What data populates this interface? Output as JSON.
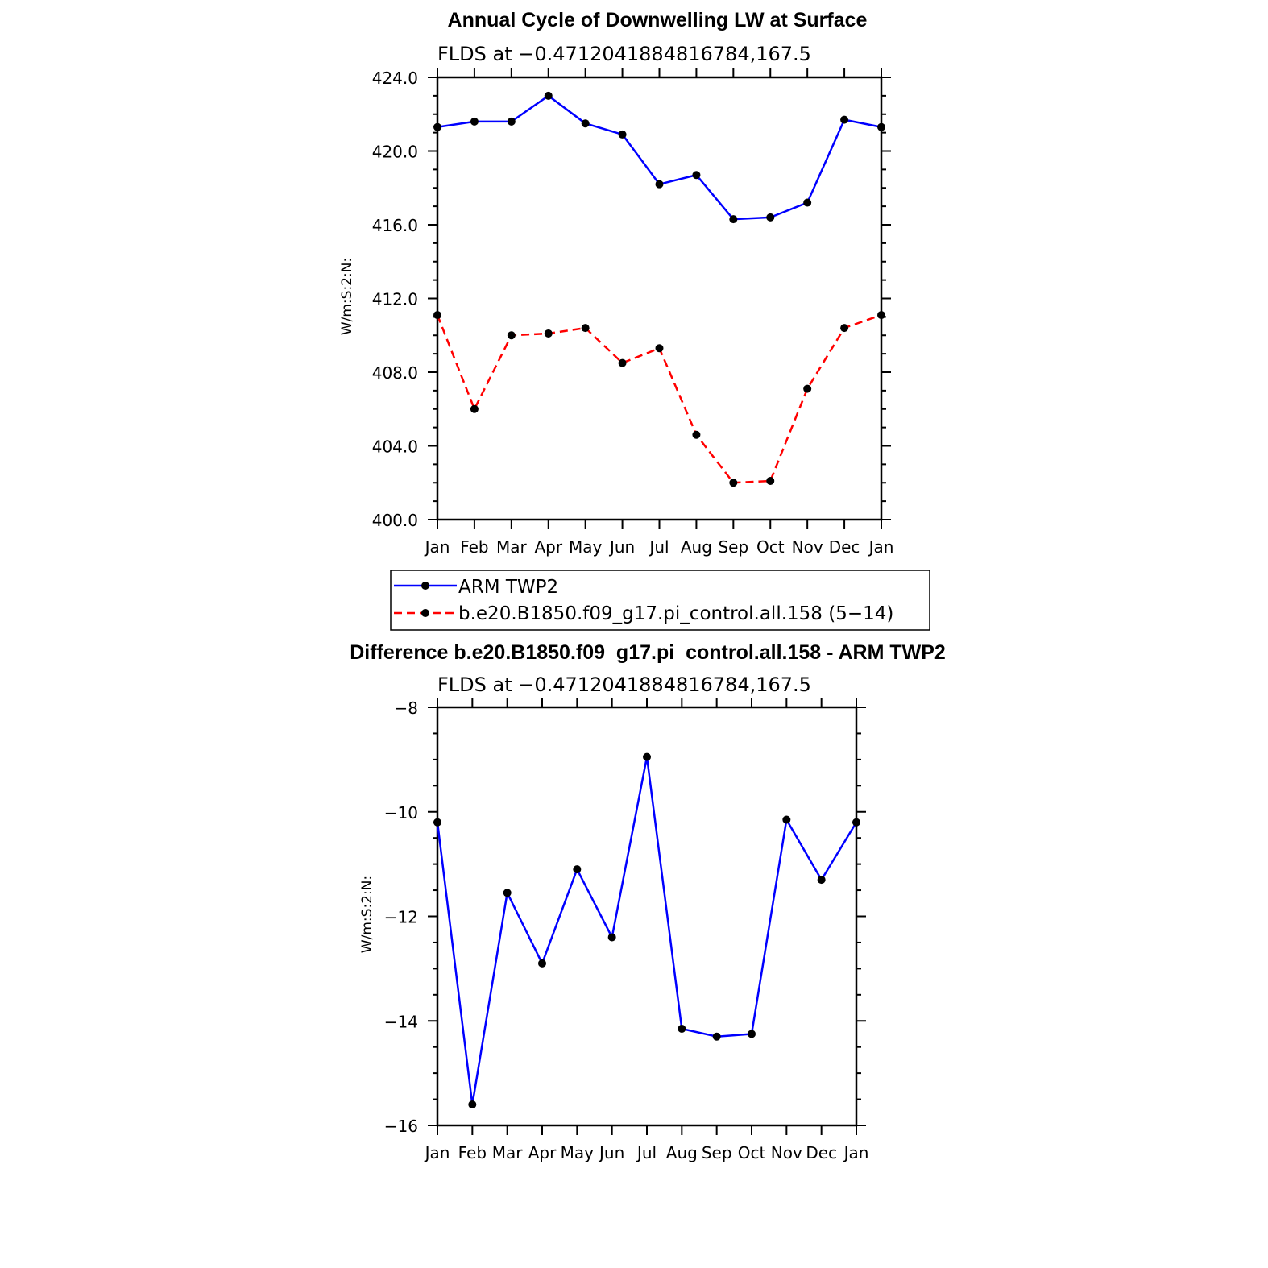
{
  "chart_data": [
    {
      "type": "line",
      "title": "Annual Cycle of Downwelling LW at Surface",
      "subtitle": "FLDS at −0.4712041884816784,167.5",
      "xlabel": "",
      "ylabel": "W/m:S:2:N:",
      "categories": [
        "Jan",
        "Feb",
        "Mar",
        "Apr",
        "May",
        "Jun",
        "Jul",
        "Aug",
        "Sep",
        "Oct",
        "Nov",
        "Dec",
        "Jan"
      ],
      "ylim": [
        400.0,
        424.0
      ],
      "yticks": [
        "400.0",
        "404.0",
        "408.0",
        "412.0",
        "416.0",
        "420.0",
        "424.0"
      ],
      "ytick_values": [
        400,
        404,
        408,
        412,
        416,
        420,
        424
      ],
      "series": [
        {
          "name": "ARM TWP2",
          "color": "#0000ff",
          "style": "solid",
          "values": [
            421.3,
            421.6,
            421.6,
            423.0,
            421.5,
            420.9,
            418.2,
            418.7,
            416.3,
            416.4,
            417.2,
            421.7,
            421.3
          ]
        },
        {
          "name": "b.e20.B1850.f09_g17.pi_control.all.158 (5−14)",
          "color": "#ff0000",
          "style": "dashed",
          "values": [
            411.1,
            406.0,
            410.0,
            410.1,
            410.4,
            408.5,
            409.3,
            404.6,
            402.0,
            402.1,
            407.1,
            410.4,
            411.1
          ]
        }
      ],
      "grid": false,
      "legend": "below plot"
    },
    {
      "type": "line",
      "title": "Difference b.e20.B1850.f09_g17.pi_control.all.158 - ARM TWP2",
      "subtitle": "FLDS at −0.4712041884816784,167.5",
      "xlabel": "",
      "ylabel": "W/m:S:2:N:",
      "categories": [
        "Jan",
        "Feb",
        "Mar",
        "Apr",
        "May",
        "Jun",
        "Jul",
        "Aug",
        "Sep",
        "Oct",
        "Nov",
        "Dec",
        "Jan"
      ],
      "ylim": [
        -16,
        -8
      ],
      "yticks": [
        "−16",
        "−14",
        "−12",
        "−10",
        "−8"
      ],
      "ytick_values": [
        -16,
        -14,
        -12,
        -10,
        -8
      ],
      "series": [
        {
          "color": "#0000ff",
          "style": "solid",
          "values": [
            -10.2,
            -15.6,
            -11.55,
            -12.9,
            -11.1,
            -12.4,
            -8.95,
            -14.15,
            -14.3,
            -14.25,
            -10.15,
            -11.3,
            -10.2
          ]
        }
      ],
      "grid": false
    }
  ]
}
